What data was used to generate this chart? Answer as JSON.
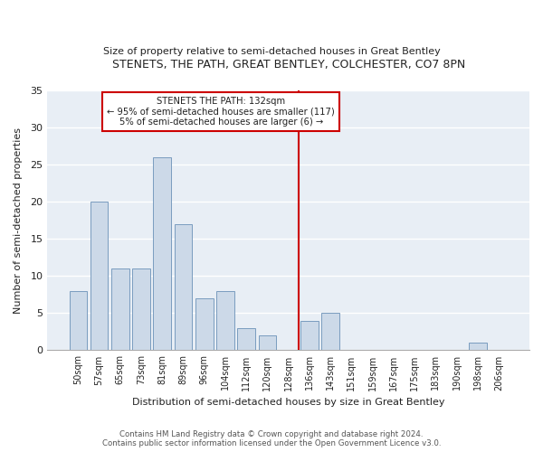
{
  "title": "STENETS, THE PATH, GREAT BENTLEY, COLCHESTER, CO7 8PN",
  "subtitle": "Size of property relative to semi-detached houses in Great Bentley",
  "xlabel": "Distribution of semi-detached houses by size in Great Bentley",
  "ylabel": "Number of semi-detached properties",
  "footer": "Contains HM Land Registry data © Crown copyright and database right 2024.\nContains public sector information licensed under the Open Government Licence v3.0.",
  "categories": [
    "50sqm",
    "57sqm",
    "65sqm",
    "73sqm",
    "81sqm",
    "89sqm",
    "96sqm",
    "104sqm",
    "112sqm",
    "120sqm",
    "128sqm",
    "136sqm",
    "143sqm",
    "151sqm",
    "159sqm",
    "167sqm",
    "175sqm",
    "183sqm",
    "190sqm",
    "198sqm",
    "206sqm"
  ],
  "values": [
    8,
    20,
    11,
    11,
    26,
    17,
    7,
    8,
    3,
    2,
    0,
    4,
    5,
    0,
    0,
    0,
    0,
    0,
    0,
    1,
    0
  ],
  "bar_color": "#ccd9e8",
  "bar_edge_color": "#7a9cbf",
  "subject_line_color": "#cc0000",
  "annotation_title": "STENETS THE PATH: 132sqm",
  "annotation_line1": "← 95% of semi-detached houses are smaller (117)",
  "annotation_line2": "5% of semi-detached houses are larger (6) →",
  "annotation_box_color": "#cc0000",
  "ylim": [
    0,
    35
  ],
  "yticks": [
    0,
    5,
    10,
    15,
    20,
    25,
    30,
    35
  ],
  "plot_bg_color": "#e8eef5",
  "fig_bg_color": "#ffffff",
  "grid_color": "#ffffff"
}
